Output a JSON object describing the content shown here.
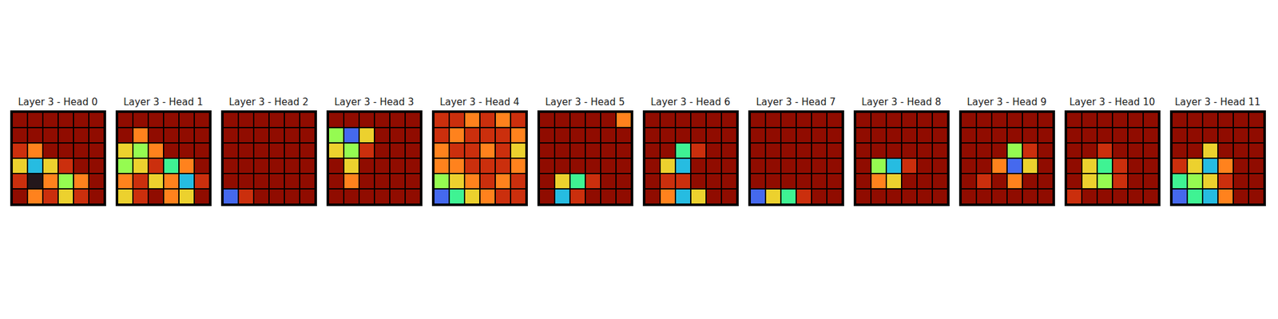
{
  "chart_data": [
    {
      "type": "heatmap",
      "title": "Layer 3 - Head 0",
      "tick_labels": false,
      "cells": [
        [
          0.9,
          0.9,
          0.9,
          0.9,
          0.9,
          0.9
        ],
        [
          0.9,
          0.9,
          0.9,
          0.9,
          0.9,
          0.9
        ],
        [
          0.8,
          0.7,
          0.9,
          0.9,
          0.9,
          0.9
        ],
        [
          0.6,
          0.3,
          0.6,
          0.8,
          0.9,
          0.9
        ],
        [
          0.8,
          0.1,
          0.7,
          0.5,
          0.7,
          0.9
        ],
        [
          0.9,
          0.7,
          0.8,
          0.6,
          0.8,
          0.9
        ]
      ]
    },
    {
      "type": "heatmap",
      "title": "Layer 3 - Head 1",
      "tick_labels": false,
      "cells": [
        [
          0.9,
          0.9,
          0.9,
          0.9,
          0.9,
          0.9
        ],
        [
          0.9,
          0.7,
          0.9,
          0.9,
          0.9,
          0.9
        ],
        [
          0.6,
          0.5,
          0.7,
          0.9,
          0.9,
          0.9
        ],
        [
          0.5,
          0.6,
          0.8,
          0.4,
          0.7,
          0.9
        ],
        [
          0.7,
          0.8,
          0.6,
          0.7,
          0.3,
          0.8
        ],
        [
          0.6,
          0.8,
          0.9,
          0.7,
          0.6,
          0.9
        ]
      ]
    },
    {
      "type": "heatmap",
      "title": "Layer 3 - Head 2",
      "tick_labels": false,
      "cells": [
        [
          0.9,
          0.9,
          0.9,
          0.9,
          0.9,
          0.9
        ],
        [
          0.9,
          0.9,
          0.9,
          0.9,
          0.9,
          0.9
        ],
        [
          0.9,
          0.9,
          0.9,
          0.9,
          0.9,
          0.9
        ],
        [
          0.9,
          0.9,
          0.9,
          0.9,
          0.9,
          0.9
        ],
        [
          0.9,
          0.9,
          0.9,
          0.9,
          0.9,
          0.9
        ],
        [
          0.2,
          0.8,
          0.9,
          0.9,
          0.9,
          0.9
        ]
      ]
    },
    {
      "type": "heatmap",
      "title": "Layer 3 - Head 3",
      "tick_labels": false,
      "cells": [
        [
          0.9,
          0.9,
          0.9,
          0.9,
          0.9,
          0.9
        ],
        [
          0.5,
          0.2,
          0.6,
          0.9,
          0.9,
          0.9
        ],
        [
          0.6,
          0.5,
          0.8,
          0.9,
          0.9,
          0.9
        ],
        [
          0.9,
          0.6,
          0.9,
          0.9,
          0.9,
          0.9
        ],
        [
          0.9,
          0.7,
          0.9,
          0.9,
          0.9,
          0.9
        ],
        [
          0.9,
          0.9,
          0.9,
          0.9,
          0.9,
          0.9
        ]
      ]
    },
    {
      "type": "heatmap",
      "title": "Layer 3 - Head 4",
      "tick_labels": false,
      "cells": [
        [
          0.8,
          0.8,
          0.7,
          0.8,
          0.7,
          0.8
        ],
        [
          0.8,
          0.7,
          0.8,
          0.8,
          0.8,
          0.7
        ],
        [
          0.7,
          0.8,
          0.8,
          0.7,
          0.8,
          0.6
        ],
        [
          0.7,
          0.7,
          0.8,
          0.8,
          0.8,
          0.7
        ],
        [
          0.5,
          0.6,
          0.7,
          0.8,
          0.7,
          0.8
        ],
        [
          0.2,
          0.4,
          0.6,
          0.7,
          0.8,
          0.8
        ]
      ]
    },
    {
      "type": "heatmap",
      "title": "Layer 3 - Head 5",
      "tick_labels": false,
      "cells": [
        [
          0.9,
          0.9,
          0.9,
          0.9,
          0.9,
          0.7
        ],
        [
          0.9,
          0.9,
          0.9,
          0.9,
          0.9,
          0.9
        ],
        [
          0.9,
          0.9,
          0.9,
          0.9,
          0.9,
          0.9
        ],
        [
          0.9,
          0.9,
          0.9,
          0.9,
          0.9,
          0.9
        ],
        [
          0.9,
          0.6,
          0.4,
          0.8,
          0.9,
          0.9
        ],
        [
          0.9,
          0.3,
          0.8,
          0.9,
          0.9,
          0.9
        ]
      ]
    },
    {
      "type": "heatmap",
      "title": "Layer 3 - Head 6",
      "tick_labels": false,
      "cells": [
        [
          0.9,
          0.9,
          0.9,
          0.9,
          0.9,
          0.9
        ],
        [
          0.9,
          0.9,
          0.9,
          0.9,
          0.9,
          0.9
        ],
        [
          0.9,
          0.9,
          0.4,
          0.8,
          0.9,
          0.9
        ],
        [
          0.9,
          0.6,
          0.3,
          0.9,
          0.9,
          0.9
        ],
        [
          0.9,
          0.8,
          0.8,
          0.9,
          0.9,
          0.9
        ],
        [
          0.9,
          0.7,
          0.3,
          0.6,
          0.9,
          0.9
        ]
      ]
    },
    {
      "type": "heatmap",
      "title": "Layer 3 - Head 7",
      "tick_labels": false,
      "cells": [
        [
          0.9,
          0.9,
          0.9,
          0.9,
          0.9,
          0.9
        ],
        [
          0.9,
          0.9,
          0.9,
          0.9,
          0.9,
          0.9
        ],
        [
          0.9,
          0.9,
          0.9,
          0.9,
          0.9,
          0.9
        ],
        [
          0.9,
          0.9,
          0.9,
          0.9,
          0.9,
          0.9
        ],
        [
          0.9,
          0.9,
          0.9,
          0.9,
          0.9,
          0.9
        ],
        [
          0.2,
          0.6,
          0.4,
          0.8,
          0.9,
          0.9
        ]
      ]
    },
    {
      "type": "heatmap",
      "title": "Layer 3 - Head 8",
      "tick_labels": false,
      "cells": [
        [
          0.9,
          0.9,
          0.9,
          0.9,
          0.9,
          0.9
        ],
        [
          0.9,
          0.9,
          0.9,
          0.9,
          0.9,
          0.9
        ],
        [
          0.9,
          0.9,
          0.9,
          0.9,
          0.9,
          0.9
        ],
        [
          0.9,
          0.5,
          0.3,
          0.8,
          0.9,
          0.9
        ],
        [
          0.9,
          0.7,
          0.6,
          0.9,
          0.9,
          0.9
        ],
        [
          0.9,
          0.9,
          0.9,
          0.9,
          0.9,
          0.9
        ]
      ]
    },
    {
      "type": "heatmap",
      "title": "Layer 3 - Head 9",
      "tick_labels": false,
      "cells": [
        [
          0.9,
          0.9,
          0.9,
          0.9,
          0.9,
          0.9
        ],
        [
          0.9,
          0.9,
          0.9,
          0.9,
          0.9,
          0.9
        ],
        [
          0.9,
          0.9,
          0.9,
          0.5,
          0.8,
          0.9
        ],
        [
          0.9,
          0.9,
          0.7,
          0.2,
          0.6,
          0.9
        ],
        [
          0.9,
          0.8,
          0.9,
          0.7,
          0.9,
          0.9
        ],
        [
          0.9,
          0.9,
          0.9,
          0.9,
          0.9,
          0.9
        ]
      ]
    },
    {
      "type": "heatmap",
      "title": "Layer 3 - Head 10",
      "tick_labels": false,
      "cells": [
        [
          0.9,
          0.9,
          0.9,
          0.9,
          0.9,
          0.9
        ],
        [
          0.9,
          0.9,
          0.9,
          0.9,
          0.9,
          0.9
        ],
        [
          0.9,
          0.9,
          0.8,
          0.9,
          0.9,
          0.9
        ],
        [
          0.9,
          0.6,
          0.4,
          0.8,
          0.9,
          0.9
        ],
        [
          0.9,
          0.6,
          0.5,
          0.8,
          0.9,
          0.9
        ],
        [
          0.8,
          0.9,
          0.9,
          0.9,
          0.9,
          0.9
        ]
      ]
    },
    {
      "type": "heatmap",
      "title": "Layer 3 - Head 11",
      "tick_labels": false,
      "cells": [
        [
          0.9,
          0.9,
          0.9,
          0.9,
          0.9,
          0.9
        ],
        [
          0.9,
          0.9,
          0.9,
          0.9,
          0.9,
          0.9
        ],
        [
          0.9,
          0.9,
          0.6,
          0.9,
          0.9,
          0.9
        ],
        [
          0.8,
          0.6,
          0.3,
          0.7,
          0.9,
          0.9
        ],
        [
          0.4,
          0.5,
          0.6,
          0.8,
          0.9,
          0.9
        ],
        [
          0.2,
          0.4,
          0.3,
          0.7,
          0.9,
          0.9
        ]
      ]
    }
  ]
}
